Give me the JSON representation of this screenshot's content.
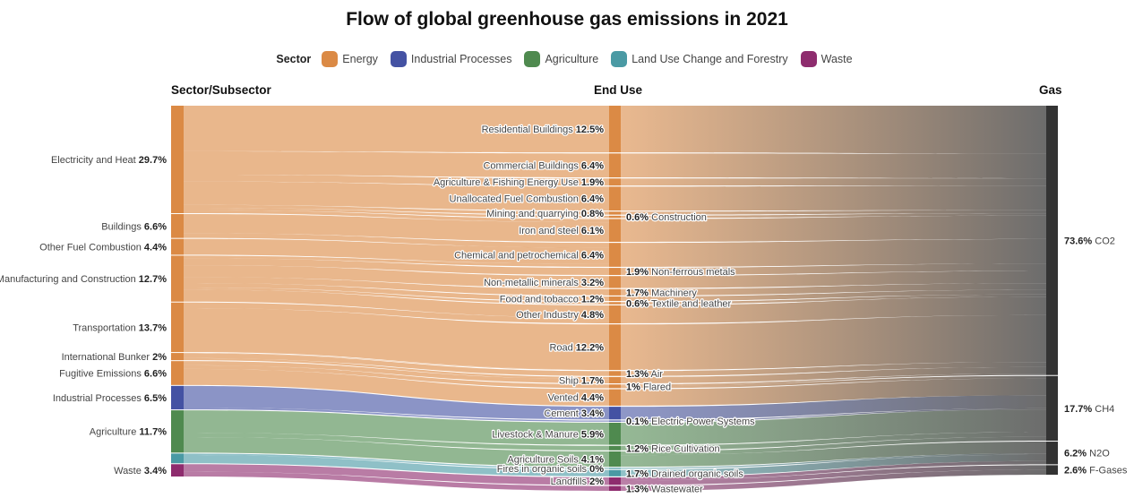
{
  "title": "Flow of global greenhouse gas emissions in 2021",
  "legend": {
    "title": "Sector",
    "items": [
      {
        "key": "energy",
        "label": "Energy",
        "color": "#db8a45"
      },
      {
        "key": "industrial",
        "label": "Industrial Processes",
        "color": "#4452a3"
      },
      {
        "key": "agriculture",
        "label": "Agriculture",
        "color": "#4f8a4f"
      },
      {
        "key": "landuse",
        "label": "Land Use Change and Forestry",
        "color": "#4a9aa4"
      },
      {
        "key": "waste",
        "label": "Waste",
        "color": "#8e2c6e"
      }
    ]
  },
  "headers": {
    "left": "Sector/Subsector",
    "middle": "End Use",
    "right": "Gas"
  },
  "gas_color": "#333333",
  "sectors": [
    {
      "name": "Electricity and Heat",
      "value": "29.7%",
      "sector": "energy"
    },
    {
      "name": "Buildings",
      "value": "6.6%",
      "sector": "energy"
    },
    {
      "name": "Other Fuel Combustion",
      "value": "4.4%",
      "sector": "energy"
    },
    {
      "name": "Manufacturing and Construction",
      "value": "12.7%",
      "sector": "energy"
    },
    {
      "name": "Transportation",
      "value": "13.7%",
      "sector": "energy"
    },
    {
      "name": "International Bunker",
      "value": "2%",
      "sector": "energy"
    },
    {
      "name": "Fugitive Emissions",
      "value": "6.6%",
      "sector": "energy"
    },
    {
      "name": "Industrial Processes",
      "value": "6.5%",
      "sector": "industrial"
    },
    {
      "name": "Agriculture",
      "value": "11.7%",
      "sector": "agriculture"
    },
    {
      "name": "",
      "value": "",
      "size": 2.7,
      "sector": "landuse"
    },
    {
      "name": "Waste",
      "value": "3.4%",
      "sector": "waste"
    }
  ],
  "end_uses": [
    {
      "name": "Residential Buildings",
      "value": "12.5%",
      "sector": "energy",
      "side": "left"
    },
    {
      "name": "Commercial Buildings",
      "value": "6.4%",
      "sector": "energy",
      "side": "left"
    },
    {
      "name": "Agriculture & Fishing Energy Use",
      "value": "1.9%",
      "sector": "energy",
      "side": "left"
    },
    {
      "name": "Unallocated Fuel Combustion",
      "value": "6.4%",
      "sector": "energy",
      "side": "left"
    },
    {
      "name": "Mining and quarrying",
      "value": "0.8%",
      "sector": "energy",
      "side": "left"
    },
    {
      "name": "Construction",
      "value": "0.6%",
      "sector": "energy",
      "side": "right"
    },
    {
      "name": "Iron and steel",
      "value": "6.1%",
      "sector": "energy",
      "side": "left"
    },
    {
      "name": "Chemical and petrochemical",
      "value": "6.4%",
      "sector": "energy",
      "side": "left"
    },
    {
      "name": "Non-ferrous metals",
      "value": "1.9%",
      "sector": "energy",
      "side": "right"
    },
    {
      "name": "Non-metallic minerals",
      "value": "3.2%",
      "sector": "energy",
      "side": "left"
    },
    {
      "name": "Machinery",
      "value": "1.7%",
      "sector": "energy",
      "side": "right"
    },
    {
      "name": "Food and tobacco",
      "value": "1.2%",
      "sector": "energy",
      "side": "left"
    },
    {
      "name": "Textile and leather",
      "value": "0.6%",
      "sector": "energy",
      "side": "right"
    },
    {
      "name": "Other Industry",
      "value": "4.8%",
      "sector": "energy",
      "side": "left"
    },
    {
      "name": "Road",
      "value": "12.2%",
      "sector": "energy",
      "side": "left"
    },
    {
      "name": "Air",
      "value": "1.3%",
      "sector": "energy",
      "side": "right"
    },
    {
      "name": "Ship",
      "value": "1.7%",
      "sector": "energy",
      "side": "left"
    },
    {
      "name": "Flared",
      "value": "1%",
      "sector": "energy",
      "side": "right"
    },
    {
      "name": "Vented",
      "value": "4.4%",
      "sector": "energy",
      "side": "left"
    },
    {
      "name": "Cement",
      "value": "3.4%",
      "sector": "industrial",
      "side": "left"
    },
    {
      "name": "Electric Power Systems",
      "value": "0.1%",
      "sector": "industrial",
      "side": "right"
    },
    {
      "name": "Livestock & Manure",
      "value": "5.9%",
      "sector": "agriculture",
      "side": "left"
    },
    {
      "name": "Rice Cultivation",
      "value": "1.2%",
      "sector": "agriculture",
      "side": "right"
    },
    {
      "name": "Agriculture Soils",
      "value": "4.1%",
      "sector": "agriculture",
      "side": "left"
    },
    {
      "name": "Fires in organic soils",
      "value": "0%",
      "sector": "landuse",
      "side": "left"
    },
    {
      "name": "Drained organic soils",
      "value": "1.7%",
      "sector": "landuse",
      "side": "right"
    },
    {
      "name": "Landfills",
      "value": "2%",
      "sector": "waste",
      "side": "left"
    },
    {
      "name": "Wastewater",
      "value": "1.3%",
      "sector": "waste",
      "side": "right"
    }
  ],
  "gases": [
    {
      "name": "CO2",
      "value": "73.6%"
    },
    {
      "name": "CH4",
      "value": "17.7%"
    },
    {
      "name": "N2O",
      "value": "6.2%"
    },
    {
      "name": "F-Gases",
      "value": "2.6%"
    }
  ]
}
